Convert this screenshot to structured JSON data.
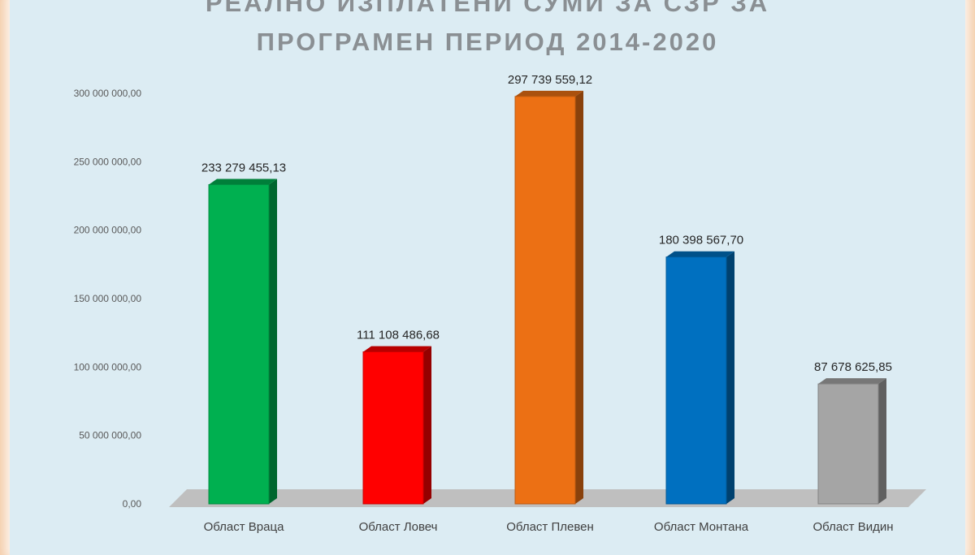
{
  "chart_data": {
    "type": "bar",
    "title_lines": [
      "РЕАЛНО ИЗПЛАТЕНИ СУМИ ЗА СЗР ЗА",
      "ПРОГРАМЕН ПЕРИОД 2014-2020"
    ],
    "categories": [
      "Област Враца",
      "Област Ловеч",
      "Област Плевен",
      "Област Монтана",
      "Област Видин"
    ],
    "values": [
      233279455.13,
      111108486.68,
      297739559.12,
      180398567.7,
      87678625.85
    ],
    "value_labels": [
      "233 279 455,13",
      "111 108 486,68",
      "297 739 559,12",
      "180 398 567,70",
      "87 678 625,85"
    ],
    "bar_colors": [
      "#00b050",
      "#ff0000",
      "#ec7014",
      "#0070c0",
      "#a5a5a5"
    ],
    "ylim": [
      0,
      300000000
    ],
    "yticks": [
      0,
      50000000,
      100000000,
      150000000,
      200000000,
      250000000,
      300000000
    ],
    "ytick_labels": [
      "0,00",
      "50 000 000,00",
      "100 000 000,00",
      "150 000 000,00",
      "200 000 000,00",
      "250 000 000,00",
      "300 000 000,00"
    ],
    "grid": false,
    "legend": false
  }
}
